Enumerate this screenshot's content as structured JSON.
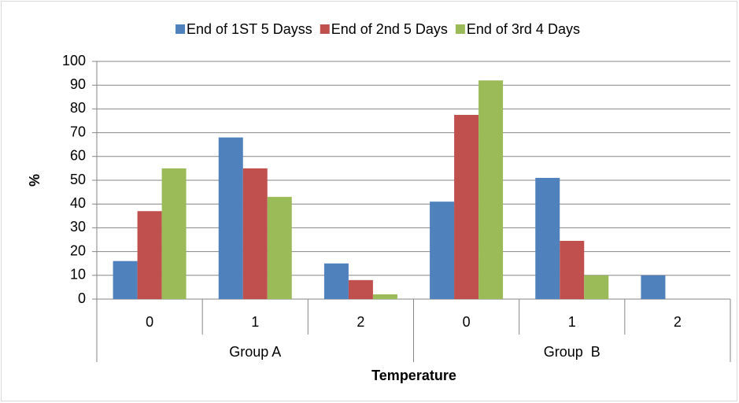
{
  "chart_data": {
    "type": "bar",
    "categories": [
      "0",
      "1",
      "2",
      "0",
      "1",
      "2"
    ],
    "category_groups": [
      "Group A",
      "Group  B"
    ],
    "x_label": "Temperature",
    "y_label": "%",
    "series": [
      {
        "name": "End of 1ST 5 Dayss",
        "color": "#4f81bd",
        "values": [
          16,
          68,
          15,
          41,
          51,
          10
        ]
      },
      {
        "name": "End of 2nd 5 Days",
        "color": "#c0504d",
        "values": [
          37,
          55,
          8,
          77.5,
          24.5,
          0
        ]
      },
      {
        "name": "End of 3rd 4 Days",
        "color": "#9bbb59",
        "values": [
          55,
          43,
          2,
          92,
          10,
          0
        ]
      }
    ],
    "ylim": [
      0,
      100
    ],
    "yticks": [
      0,
      10,
      20,
      30,
      40,
      50,
      60,
      70,
      80,
      90,
      100
    ],
    "grid": true,
    "legend": "top"
  }
}
